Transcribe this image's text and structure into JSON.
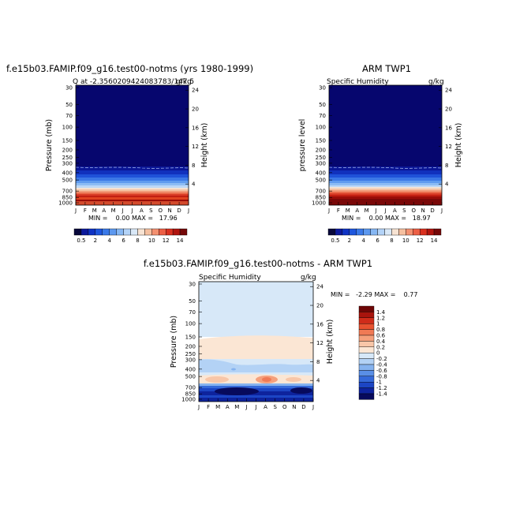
{
  "chart_data": [
    {
      "type": "heatmap",
      "title": "f.e15b03.FAMIP.f09_g16.test00-notms (yrs 1980-1999)",
      "left_label": "Q at -2.3560209424083783/147.5",
      "right_label": "g/kg",
      "ylabel": "Pressure (mb)",
      "ylabel_right": "Height (km)",
      "minmax_text": "MIN =    0.00 MAX =   17.96",
      "x": [
        "J",
        "F",
        "M",
        "A",
        "M",
        "J",
        "J",
        "A",
        "S",
        "O",
        "N",
        "D",
        "J"
      ],
      "y_ticks": [
        "30",
        "50",
        "70",
        "100",
        "150",
        "200",
        "250",
        "300",
        "400",
        "500",
        "700",
        "850",
        "1000"
      ],
      "y_values": [
        30,
        50,
        70,
        100,
        150,
        200,
        250,
        300,
        400,
        500,
        700,
        850,
        1000
      ],
      "height_ticks": [
        "24",
        "20",
        "16",
        "12",
        "8",
        "4"
      ],
      "height_values": [
        24,
        20,
        16,
        12,
        8,
        4
      ],
      "colorbar_labels": [
        "0.5",
        "2",
        "4",
        "6",
        "8",
        "10",
        "12",
        "14"
      ]
    },
    {
      "type": "heatmap",
      "title": "ARM TWP1",
      "left_label": "Specific Humidity",
      "right_label": "g/kg",
      "ylabel": "pressure level",
      "ylabel_right": "Height (km)",
      "minmax_text": "MIN =    0.00 MAX =   18.97",
      "x": [
        "J",
        "F",
        "M",
        "A",
        "M",
        "J",
        "J",
        "A",
        "S",
        "O",
        "N",
        "D",
        "J"
      ],
      "y_ticks": [
        "30",
        "50",
        "70",
        "100",
        "150",
        "200",
        "250",
        "300",
        "400",
        "500",
        "700",
        "850",
        "1000"
      ],
      "y_values": [
        30,
        50,
        70,
        100,
        150,
        200,
        250,
        300,
        400,
        500,
        700,
        850,
        1000
      ],
      "height_ticks": [
        "24",
        "20",
        "16",
        "12",
        "8",
        "4"
      ],
      "height_values": [
        24,
        20,
        16,
        12,
        8,
        4
      ],
      "colorbar_labels": [
        "0.5",
        "2",
        "4",
        "6",
        "8",
        "10",
        "12",
        "14"
      ]
    },
    {
      "type": "heatmap",
      "title": "f.e15b03.FAMIP.f09_g16.test00-notms - ARM TWP1",
      "left_label": "Specific Humidity",
      "right_label": "g/kg",
      "ylabel": "Pressure (mb)",
      "ylabel_right": "Height (km)",
      "minmax_text": "MIN =   -2.29 MAX =    0.77",
      "x": [
        "J",
        "F",
        "M",
        "A",
        "M",
        "J",
        "J",
        "A",
        "S",
        "O",
        "N",
        "D",
        "J"
      ],
      "y_ticks": [
        "30",
        "50",
        "70",
        "100",
        "150",
        "200",
        "250",
        "300",
        "400",
        "500",
        "700",
        "850",
        "1000"
      ],
      "y_values": [
        30,
        50,
        70,
        100,
        150,
        200,
        250,
        300,
        400,
        500,
        700,
        850,
        1000
      ],
      "height_ticks": [
        "24",
        "20",
        "16",
        "12",
        "8",
        "4"
      ],
      "height_values": [
        24,
        20,
        16,
        12,
        8,
        4
      ],
      "colorbar_labels": [
        "1.4",
        "1.2",
        "1",
        "0.8",
        "0.6",
        "0.4",
        "0.2",
        "0",
        "-0.2",
        "-0.4",
        "-0.6",
        "-0.8",
        "-1",
        "-1.2",
        "-1.4"
      ]
    }
  ],
  "colors": {
    "seq_colorbar": [
      "#08083a",
      "#0d1a9c",
      "#0f33c4",
      "#1e56dd",
      "#3a79e8",
      "#5c98ef",
      "#86b7f3",
      "#b3d3f7",
      "#d9e8f7",
      "#f7e3d3",
      "#f5c0a0",
      "#f39070",
      "#ec5f45",
      "#d9301f",
      "#b0140e",
      "#750808"
    ],
    "div_colorbar": [
      "#6e0606",
      "#a8140d",
      "#d02c1a",
      "#e85230",
      "#f07a55",
      "#f5a07c",
      "#f8c6a8",
      "#fbe6d4",
      "#d7e8f8",
      "#b3d2f5",
      "#86b3ef",
      "#5a8fe6",
      "#3569d9",
      "#1c45c4",
      "#0e239d",
      "#070a5c"
    ]
  }
}
